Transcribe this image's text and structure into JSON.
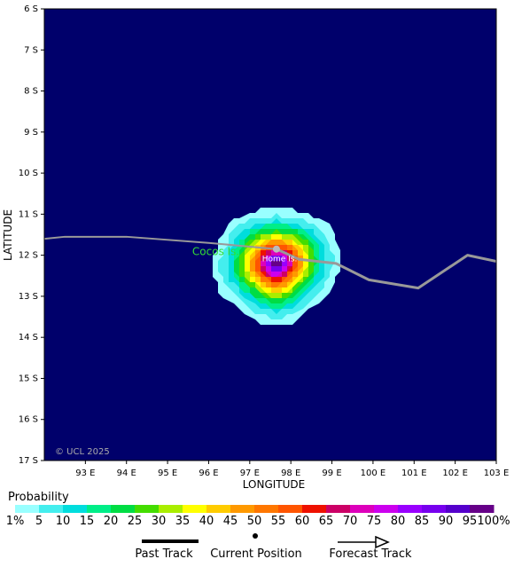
{
  "map": {
    "x_title": "LONGITUDE",
    "y_title": "LATITUDE",
    "copyright": "© UCL 2025",
    "background_color": "#00006b",
    "lat_ticks": [
      "6 S",
      "7 S",
      "8 S",
      "9 S",
      "10 S",
      "11 S",
      "12 S",
      "13 S",
      "14 S",
      "15 S",
      "16 S",
      "17 S"
    ],
    "lon_ticks": [
      "93 E",
      "94 E",
      "95 E",
      "96 E",
      "97 E",
      "98 E",
      "99 E",
      "100 E",
      "101 E",
      "102 E",
      "103 E"
    ],
    "places": [
      {
        "name": "Cocos Is.",
        "color": "#33dd33",
        "lon": 95.6,
        "lat": -12.0
      },
      {
        "name": "Home Is.",
        "color": "#ffffff",
        "lon": 97.3,
        "lat": -12.15
      }
    ],
    "current_position": {
      "lon": 97.65,
      "lat": -11.85
    },
    "past_track": [
      {
        "lon": 92.0,
        "lat": -11.6
      },
      {
        "lon": 92.5,
        "lat": -11.55
      },
      {
        "lon": 94.0,
        "lat": -11.55
      },
      {
        "lon": 96.0,
        "lat": -11.7
      },
      {
        "lon": 97.65,
        "lat": -11.85
      }
    ],
    "forecast_track": [
      {
        "lon": 97.65,
        "lat": -11.85
      },
      {
        "lon": 98.2,
        "lat": -12.1
      },
      {
        "lon": 99.1,
        "lat": -12.2
      },
      {
        "lon": 99.9,
        "lat": -12.6
      },
      {
        "lon": 101.1,
        "lat": -12.8
      },
      {
        "lon": 102.3,
        "lat": -12.0
      },
      {
        "lon": 103.0,
        "lat": -12.15
      }
    ],
    "track_color": "#999999"
  },
  "probability": {
    "center": {
      "lon": 97.65,
      "lat": -12.2
    },
    "bands_outer_to_inner": [
      {
        "pct": 1,
        "color": "#99ffff",
        "r": 1.55
      },
      {
        "pct": 5,
        "color": "#44eeee",
        "r": 1.35
      },
      {
        "pct": 10,
        "color": "#00dddd",
        "r": 1.2
      },
      {
        "pct": 15,
        "color": "#00ee88",
        "r": 1.08
      },
      {
        "pct": 20,
        "color": "#00dd44",
        "r": 0.98
      },
      {
        "pct": 25,
        "color": "#44dd00",
        "r": 0.9
      },
      {
        "pct": 30,
        "color": "#aaee00",
        "r": 0.82
      },
      {
        "pct": 35,
        "color": "#ffff00",
        "r": 0.75
      },
      {
        "pct": 40,
        "color": "#ffcc00",
        "r": 0.68
      },
      {
        "pct": 45,
        "color": "#ff9900",
        "r": 0.61
      },
      {
        "pct": 50,
        "color": "#ff7700",
        "r": 0.55
      },
      {
        "pct": 55,
        "color": "#ff5500",
        "r": 0.49
      },
      {
        "pct": 60,
        "color": "#ee1100",
        "r": 0.44
      },
      {
        "pct": 65,
        "color": "#cc0066",
        "r": 0.39
      },
      {
        "pct": 70,
        "color": "#dd00bb",
        "r": 0.34
      },
      {
        "pct": 75,
        "color": "#cc00ee",
        "r": 0.29
      },
      {
        "pct": 80,
        "color": "#9900ff",
        "r": 0.24
      },
      {
        "pct": 85,
        "color": "#7700ee",
        "r": 0.19
      },
      {
        "pct": 90,
        "color": "#5500cc",
        "r": 0.14
      },
      {
        "pct": 95,
        "color": "#660088",
        "r": 0.09
      }
    ]
  },
  "legend": {
    "title": "Probability",
    "labels": [
      "1%",
      "5",
      "10",
      "15",
      "20",
      "25",
      "30",
      "35",
      "40",
      "45",
      "50",
      "55",
      "60",
      "65",
      "70",
      "75",
      "80",
      "85",
      "90",
      "95",
      "100%"
    ],
    "colors": [
      "#99ffff",
      "#44eeee",
      "#00dddd",
      "#00ee88",
      "#00dd44",
      "#44dd00",
      "#aaee00",
      "#ffff00",
      "#ffcc00",
      "#ff9900",
      "#ff7700",
      "#ff5500",
      "#ee1100",
      "#cc0066",
      "#dd00bb",
      "#cc00ee",
      "#9900ff",
      "#7700ee",
      "#5500cc",
      "#660088"
    ]
  },
  "key": {
    "past_track": "Past Track",
    "current_position": "Current Position",
    "forecast_track": "Forecast Track"
  }
}
